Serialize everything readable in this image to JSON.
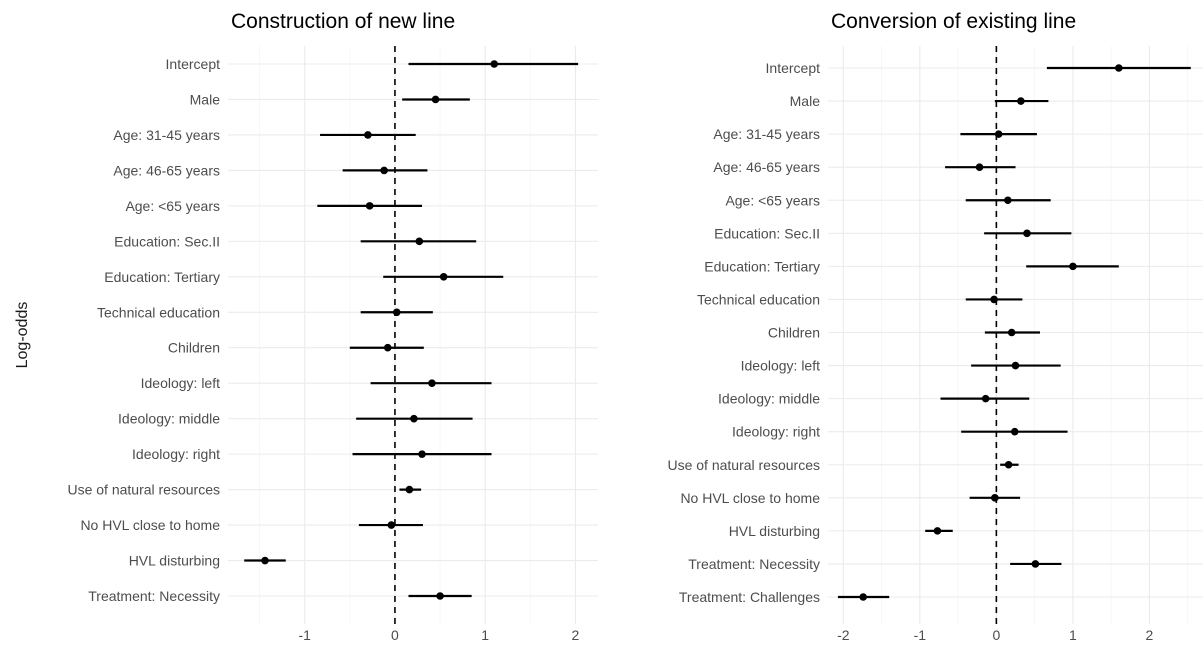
{
  "chart_data": [
    {
      "type": "scatter",
      "title": "Construction of new line",
      "ylabel": "Log-odds",
      "xlabel": "",
      "xlim": [
        -1.85,
        2.25
      ],
      "xticks": [
        -1,
        0,
        1,
        2
      ],
      "reference_line": 0,
      "grid": true,
      "categories": [
        "Intercept",
        "Male",
        "Age: 31-45 years",
        "Age: 46-65 years",
        "Age: <65 years",
        "Education: Sec.II",
        "Education: Tertiary",
        "Technical education",
        "Children",
        "Ideology: left",
        "Ideology: middle",
        "Ideology: right",
        "Use of natural resources",
        "No HVL close to home",
        "HVL disturbing",
        "Treatment: Necessity"
      ],
      "estimates": [
        1.1,
        0.45,
        -0.3,
        -0.12,
        -0.28,
        0.27,
        0.54,
        0.02,
        -0.08,
        0.41,
        0.21,
        0.3,
        0.16,
        -0.04,
        -1.44,
        0.5
      ],
      "lower": [
        0.15,
        0.08,
        -0.83,
        -0.58,
        -0.86,
        -0.38,
        -0.13,
        -0.38,
        -0.5,
        -0.27,
        -0.43,
        -0.47,
        0.05,
        -0.4,
        -1.67,
        0.15
      ],
      "upper": [
        2.03,
        0.83,
        0.23,
        0.36,
        0.3,
        0.9,
        1.2,
        0.42,
        0.32,
        1.07,
        0.86,
        1.07,
        0.29,
        0.31,
        -1.21,
        0.85
      ]
    },
    {
      "type": "scatter",
      "title": "Conversion of existing line",
      "ylabel": "",
      "xlabel": "",
      "xlim": [
        -2.2,
        2.7
      ],
      "xticks": [
        -2,
        -1,
        0,
        1,
        2
      ],
      "reference_line": 0,
      "grid": true,
      "categories": [
        "Intercept",
        "Male",
        "Age: 31-45 years",
        "Age: 46-65 years",
        "Age: <65 years",
        "Education: Sec.II",
        "Education: Tertiary",
        "Technical education",
        "Children",
        "Ideology: left",
        "Ideology: middle",
        "Ideology: right",
        "Use of natural resources",
        "No HVL close to home",
        "HVL disturbing",
        "Treatment: Necessity",
        "Treatment: Challenges"
      ],
      "estimates": [
        1.6,
        0.32,
        0.03,
        -0.22,
        0.15,
        0.4,
        1.0,
        -0.03,
        0.2,
        0.25,
        -0.14,
        0.24,
        0.16,
        -0.02,
        -0.77,
        0.51,
        -1.74
      ],
      "lower": [
        0.66,
        -0.02,
        -0.47,
        -0.67,
        -0.4,
        -0.16,
        0.39,
        -0.4,
        -0.15,
        -0.33,
        -0.73,
        -0.46,
        0.05,
        -0.35,
        -0.93,
        0.18,
        -2.07
      ],
      "upper": [
        2.54,
        0.68,
        0.53,
        0.25,
        0.71,
        0.98,
        1.6,
        0.34,
        0.57,
        0.84,
        0.43,
        0.93,
        0.29,
        0.31,
        -0.57,
        0.85,
        -1.4
      ]
    }
  ]
}
